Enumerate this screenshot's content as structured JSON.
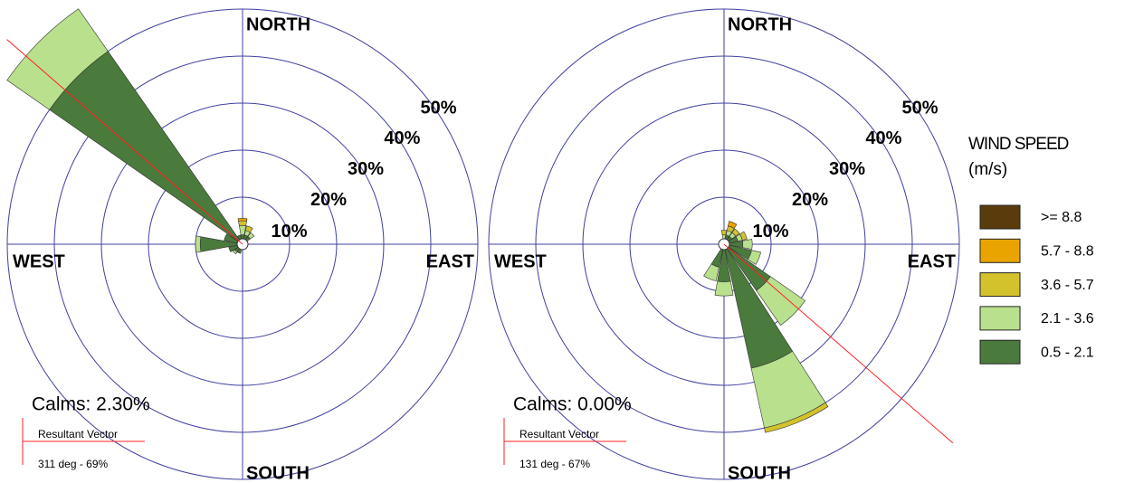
{
  "speed_classes": [
    {
      "name": "0.5 - 2.1",
      "color": "#4a7a3c"
    },
    {
      "name": "2.1 - 3.6",
      "color": "#b9e08c"
    },
    {
      "name": "3.6 - 5.7",
      "color": "#d3c22c"
    },
    {
      "name": "5.7 - 8.8",
      "color": "#e9a400"
    },
    {
      "name": ">= 8.8",
      "color": "#5a3c0c"
    }
  ],
  "legend": {
    "title": [
      "WIND SPEED",
      "(m/s)"
    ]
  },
  "chart_data": [
    {
      "type": "windrose",
      "compass": [
        "NORTH",
        "EAST",
        "SOUTH",
        "WEST"
      ],
      "ylim": [
        0,
        50
      ],
      "yticks": [
        {
          "value": 10,
          "label": "10%"
        },
        {
          "value": 20,
          "label": "20%"
        },
        {
          "value": 30,
          "label": "30%"
        },
        {
          "value": 40,
          "label": "40%"
        },
        {
          "value": 50,
          "label": "50%"
        }
      ],
      "calms": "Calms: 2.30%",
      "resultant_vector": {
        "label": "Resultant Vector",
        "text": "311 deg - 69%",
        "direction": 311,
        "percent": 69,
        "color": "#ff2020"
      },
      "series": [
        {
          "values": [
            2,
            2,
            2,
            1,
            1,
            1,
            1,
            1,
            1,
            2,
            2,
            3,
            9,
            4,
            50,
            2
          ]
        },
        {
          "values": [
            2,
            1,
            1,
            0,
            0,
            0,
            0,
            0,
            0,
            0,
            0.5,
            0,
            1,
            0,
            11,
            0
          ]
        },
        {
          "values": [
            1,
            1,
            0,
            0,
            0,
            0,
            0,
            0,
            0,
            0,
            0,
            0,
            0,
            0,
            0,
            0
          ]
        },
        {
          "values": [
            0.5,
            0,
            0,
            0,
            0,
            0,
            0,
            0,
            0,
            0,
            0,
            0,
            0,
            0,
            0,
            0
          ]
        },
        {
          "values": [
            0,
            0,
            0,
            0,
            0,
            0,
            0,
            0,
            0,
            0,
            0,
            0,
            0,
            0,
            0,
            0
          ]
        }
      ]
    },
    {
      "type": "windrose",
      "compass": [
        "NORTH",
        "EAST",
        "SOUTH",
        "WEST"
      ],
      "ylim": [
        0,
        50
      ],
      "yticks": [
        {
          "value": 10,
          "label": "10%"
        },
        {
          "value": 20,
          "label": "20%"
        },
        {
          "value": 30,
          "label": "30%"
        },
        {
          "value": 40,
          "label": "40%"
        },
        {
          "value": 50,
          "label": "50%"
        }
      ],
      "calms": "Calms: 0.00%",
      "resultant_vector": {
        "label": "Resultant Vector",
        "text": "131 deg - 67%",
        "direction": 131,
        "percent": 67,
        "color": "#ff2020"
      },
      "series": [
        {
          "values": [
            1,
            2,
            2,
            3,
            4,
            6,
            12,
            27,
            8,
            5,
            1,
            1,
            0.5,
            0.5,
            0.5,
            0.5
          ]
        },
        {
          "values": [
            1,
            1,
            1,
            1,
            2,
            2,
            9,
            13,
            3,
            3,
            0,
            0,
            0,
            0,
            0,
            0
          ]
        },
        {
          "values": [
            1,
            1,
            1,
            1,
            0,
            0,
            0,
            1,
            0,
            0,
            0,
            0,
            0,
            0,
            0,
            0
          ]
        },
        {
          "values": [
            0,
            1,
            0,
            0,
            0,
            0,
            0,
            0,
            0,
            0,
            0,
            0,
            0,
            0,
            0,
            0
          ]
        },
        {
          "values": [
            0,
            0,
            0,
            0,
            0,
            0,
            0,
            0,
            0,
            0,
            0,
            0,
            0,
            0,
            0,
            0
          ]
        }
      ]
    }
  ]
}
